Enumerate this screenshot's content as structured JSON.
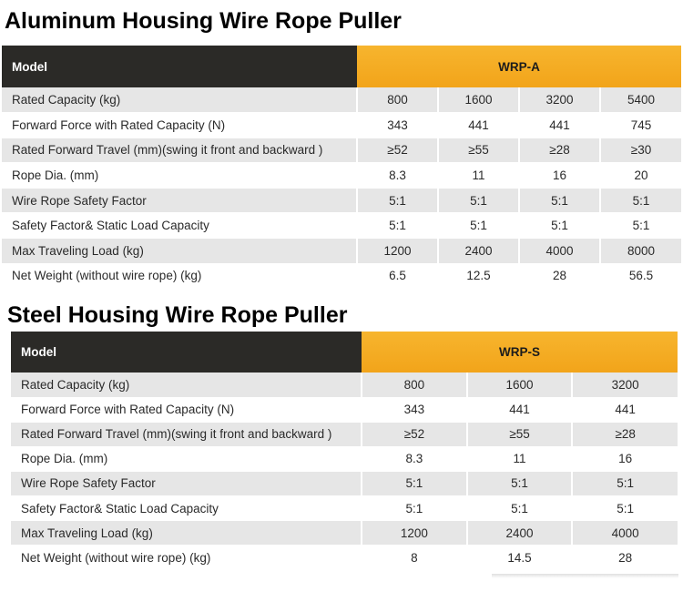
{
  "sections": [
    {
      "title": "Aluminum Housing Wire Rope Puller",
      "header_label": "Model",
      "model_name": "WRP-A",
      "rows": [
        {
          "label": "Rated Capacity (kg)",
          "values": [
            "800",
            "1600",
            "3200",
            "5400"
          ]
        },
        {
          "label": "Forward Force with Rated Capacity (N)",
          "values": [
            "343",
            "441",
            "441",
            "745"
          ]
        },
        {
          "label": "Rated Forward Travel (mm)(swing it front and backward )",
          "values": [
            "≥52",
            "≥55",
            "≥28",
            "≥30"
          ]
        },
        {
          "label": "Rope Dia. (mm)",
          "values": [
            "8.3",
            "11",
            "16",
            "20"
          ]
        },
        {
          "label": "Wire Rope Safety Factor",
          "values": [
            "5:1",
            "5:1",
            "5:1",
            "5:1"
          ]
        },
        {
          "label": "Safety Factor& Static Load Capacity",
          "values": [
            "5:1",
            "5:1",
            "5:1",
            "5:1"
          ]
        },
        {
          "label": "Max Traveling Load (kg)",
          "values": [
            "1200",
            "2400",
            "4000",
            "8000"
          ]
        },
        {
          "label": "Net Weight (without wire rope) (kg)",
          "values": [
            "6.5",
            "12.5",
            "28",
            "56.5"
          ]
        }
      ]
    },
    {
      "title": "Steel Housing Wire Rope Puller",
      "header_label": "Model",
      "model_name": "WRP-S",
      "rows": [
        {
          "label": "Rated Capacity (kg)",
          "values": [
            "800",
            "1600",
            "3200"
          ]
        },
        {
          "label": "Forward Force with Rated Capacity (N)",
          "values": [
            "343",
            "441",
            "441"
          ]
        },
        {
          "label": "Rated Forward Travel (mm)(swing it front and backward )",
          "values": [
            "≥52",
            "≥55",
            "≥28"
          ]
        },
        {
          "label": "Rope Dia. (mm)",
          "values": [
            "8.3",
            "11",
            "16"
          ]
        },
        {
          "label": "Wire Rope Safety Factor",
          "values": [
            "5:1",
            "5:1",
            "5:1"
          ]
        },
        {
          "label": "Safety Factor& Static Load Capacity",
          "values": [
            "5:1",
            "5:1",
            "5:1"
          ]
        },
        {
          "label": "Max Traveling Load (kg)",
          "values": [
            "1200",
            "2400",
            "4000"
          ]
        },
        {
          "label": "Net Weight (without wire rope) (kg)",
          "values": [
            "8",
            "14.5",
            "28"
          ]
        }
      ]
    }
  ],
  "colors": {
    "header_dark": "#2b2a27",
    "header_accent": "#f5a623",
    "row_shade": "#e6e6e6"
  }
}
